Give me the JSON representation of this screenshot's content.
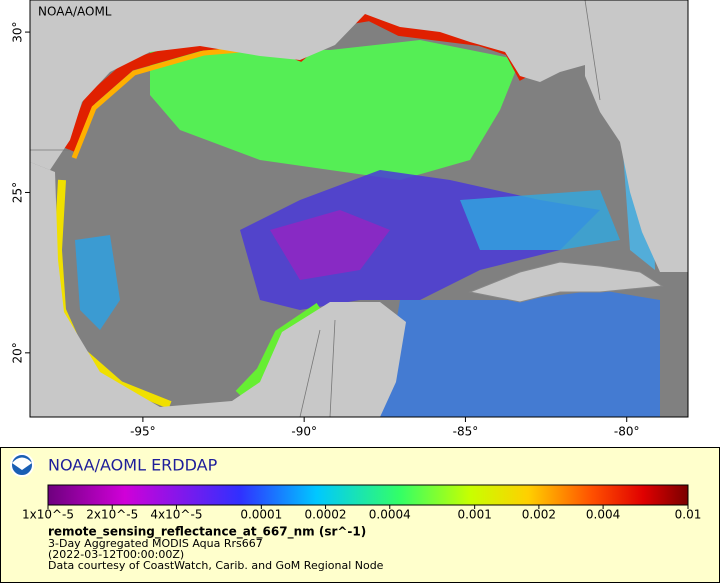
{
  "map": {
    "watermark": "NOAA/AOML",
    "log": false,
    "xlim": [
      -98.5,
      -78.1
    ],
    "ylim": [
      18,
      31
    ],
    "lon_ticks": [
      {
        "value": -95,
        "label": "-95°"
      },
      {
        "value": -90,
        "label": "-90°"
      },
      {
        "value": -85,
        "label": "-85°"
      },
      {
        "value": -80,
        "label": "-80°"
      }
    ],
    "lat_ticks": [
      {
        "value": 20,
        "label": "20°"
      },
      {
        "value": 25,
        "label": "25°"
      },
      {
        "value": 30,
        "label": "30°"
      }
    ]
  },
  "legend": {
    "title": "NOAA/AOML ERDDAP",
    "colorbar": {
      "log": true,
      "lim": [
        1e-05,
        0.01
      ],
      "ticks": [
        {
          "value": 1e-05,
          "label": "1x10^-5"
        },
        {
          "value": 2e-05,
          "label": "2x10^-5"
        },
        {
          "value": 4e-05,
          "label": "4x10^-5"
        },
        0.0001,
        0.0002,
        0.0004,
        0.001,
        0.002,
        0.004,
        0.01
      ]
    },
    "variable": "remote_sensing_reflectance_at_667_nm (sr^-1)",
    "lines": [
      "3-Day Aggregated MODIS Aqua Rrs667",
      "(2022-03-12T00:00:00Z)",
      "Data courtesy of CoastWatch, Carib. and GoM Regional Node"
    ]
  }
}
